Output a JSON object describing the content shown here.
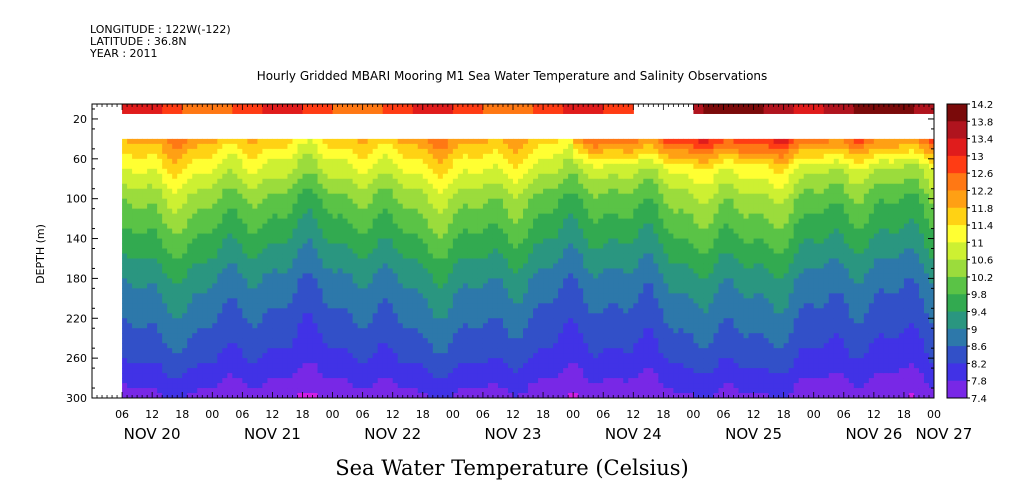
{
  "header": {
    "longitude": "LONGITUDE : 122W(-122)",
    "latitude": "LATITUDE : 36.8N",
    "year": "YEAR : 2011",
    "title": "Hourly Gridded MBARI Mooring M1 Sea Water Temperature and Salinity Observations"
  },
  "chart_data": {
    "type": "heatmap",
    "title": "Hourly Gridded MBARI Mooring M1 Sea Water Temperature and Salinity Observations",
    "xlabel": "",
    "ylabel": "DEPTH (m)",
    "bottom_label": "Sea Water Temperature (Celsius)",
    "x_hour_ticks": [
      "06",
      "12",
      "18",
      "00",
      "06",
      "12",
      "18",
      "00",
      "06",
      "12",
      "18",
      "00",
      "06",
      "12",
      "18",
      "00",
      "06",
      "12",
      "18",
      "00",
      "06",
      "12",
      "18",
      "00",
      "06",
      "12",
      "18",
      "00"
    ],
    "x_date_labels": [
      "NOV 20",
      "NOV 21",
      "NOV 22",
      "NOV 23",
      "NOV 24",
      "NOV 25",
      "NOV 26",
      "NOV 27"
    ],
    "x_range_hours": [
      0,
      168
    ],
    "y_ticks": [
      "20",
      "60",
      "100",
      "140",
      "180",
      "220",
      "260",
      "300"
    ],
    "ylim": [
      300,
      5
    ],
    "colorbar_levels": [
      "14.2",
      "13.8",
      "13.4",
      "13",
      "12.6",
      "12.2",
      "11.8",
      "11.4",
      "11",
      "10.6",
      "10.2",
      "9.8",
      "9.4",
      "9",
      "8.6",
      "8.2",
      "7.8",
      "7.4"
    ],
    "colorbar_colors": [
      "#7a0a0a",
      "#b0141e",
      "#e01c1c",
      "#ff3c14",
      "#ff7814",
      "#ffa014",
      "#ffd214",
      "#ffff32",
      "#cdf032",
      "#9bdc3c",
      "#5ac346",
      "#32aa50",
      "#2a9680",
      "#2d78aa",
      "#3250c8",
      "#4132e6",
      "#7828e6",
      "#d21ee6"
    ],
    "surface_sensor": {
      "depth": 10,
      "segments": [
        {
          "start_hour": 6,
          "end_hour": 108,
          "temperature": 12.8
        },
        {
          "start_hour": 120,
          "end_hour": 168,
          "temperature": 13.7
        }
      ]
    },
    "profile_depth_range": [
      40,
      300
    ],
    "profile_summary": [
      {
        "depth": 40,
        "temperature": 11.8
      },
      {
        "depth": 60,
        "temperature": 11.2
      },
      {
        "depth": 100,
        "temperature": 10.2
      },
      {
        "depth": 140,
        "temperature": 9.6
      },
      {
        "depth": 180,
        "temperature": 9.0
      },
      {
        "depth": 220,
        "temperature": 8.6
      },
      {
        "depth": 260,
        "temperature": 8.2
      },
      {
        "depth": 300,
        "temperature": 7.6
      }
    ]
  }
}
